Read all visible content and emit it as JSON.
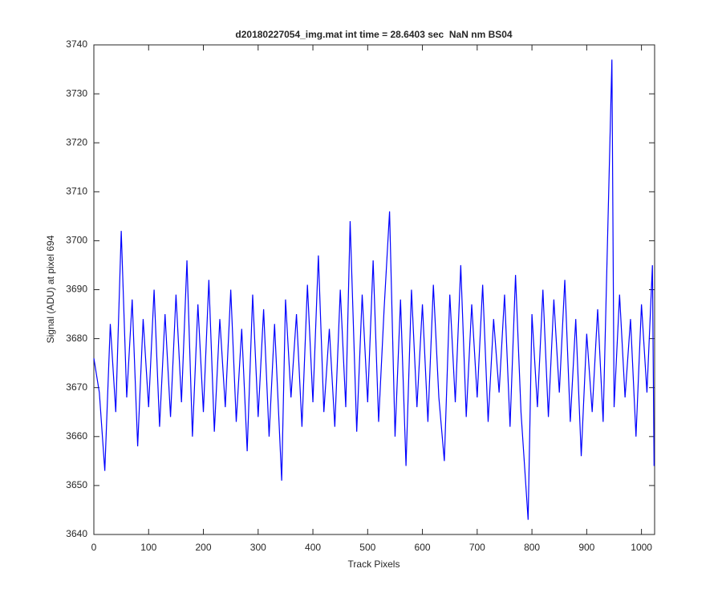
{
  "chart_data": {
    "type": "line",
    "title": "d20180227054_img.mat int time = 28.6403 sec  NaN nm BS04",
    "xlabel": "Track Pixels",
    "ylabel": "Signal (ADU) at pixel 694",
    "x": [
      0,
      10,
      20,
      30,
      40,
      50,
      60,
      70,
      80,
      90,
      100,
      110,
      120,
      130,
      140,
      150,
      160,
      170,
      180,
      190,
      200,
      210,
      220,
      230,
      240,
      250,
      260,
      270,
      280,
      290,
      300,
      310,
      320,
      330,
      343,
      350,
      360,
      370,
      380,
      390,
      400,
      410,
      420,
      430,
      440,
      450,
      460,
      468,
      480,
      490,
      500,
      510,
      520,
      530,
      540,
      550,
      560,
      570,
      580,
      590,
      600,
      610,
      620,
      630,
      640,
      650,
      660,
      670,
      680,
      690,
      700,
      710,
      720,
      730,
      740,
      750,
      760,
      770,
      780,
      793,
      800,
      810,
      820,
      830,
      840,
      850,
      860,
      870,
      880,
      890,
      900,
      910,
      920,
      930,
      946,
      950,
      960,
      970,
      980,
      990,
      1000,
      1010,
      1020,
      1023
    ],
    "series": [
      {
        "name": "signal",
        "color": "#0000ff",
        "values": [
          3676,
          3669,
          3653,
          3683,
          3665,
          3702,
          3668,
          3688,
          3658,
          3684,
          3666,
          3690,
          3662,
          3685,
          3664,
          3689,
          3667,
          3696,
          3660,
          3687,
          3665,
          3692,
          3661,
          3684,
          3666,
          3690,
          3663,
          3682,
          3657,
          3689,
          3664,
          3686,
          3660,
          3683,
          3651,
          3688,
          3668,
          3685,
          3662,
          3691,
          3667,
          3697,
          3665,
          3682,
          3662,
          3690,
          3666,
          3704,
          3661,
          3689,
          3667,
          3696,
          3663,
          3686,
          3706,
          3660,
          3688,
          3654,
          3690,
          3666,
          3687,
          3663,
          3691,
          3668,
          3655,
          3689,
          3667,
          3695,
          3664,
          3687,
          3668,
          3691,
          3663,
          3684,
          3669,
          3689,
          3662,
          3693,
          3665,
          3643,
          3685,
          3666,
          3690,
          3664,
          3688,
          3669,
          3692,
          3663,
          3684,
          3656,
          3681,
          3665,
          3686,
          3663,
          3737,
          3666,
          3689,
          3668,
          3684,
          3660,
          3687,
          3669,
          3695,
          3654
        ]
      }
    ],
    "xlim": [
      0,
      1024
    ],
    "ylim": [
      3640,
      3740
    ],
    "xticks": [
      0,
      100,
      200,
      300,
      400,
      500,
      600,
      700,
      800,
      900,
      1000
    ],
    "yticks": [
      3640,
      3650,
      3660,
      3670,
      3680,
      3690,
      3700,
      3710,
      3720,
      3730,
      3740
    ]
  }
}
